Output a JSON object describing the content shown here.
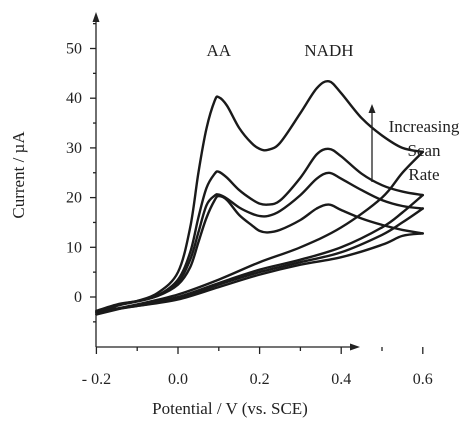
{
  "chart_data": {
    "type": "line",
    "xlabel": "Potential / V (vs. SCE)",
    "ylabel": "Current / µA",
    "x_ticks": [
      -0.2,
      0.0,
      0.2,
      0.4,
      0.6
    ],
    "x_tick_labels": [
      "- 0.2",
      "0.0",
      "0.2",
      "0.4",
      "0.6"
    ],
    "y_ticks": [
      0,
      10,
      20,
      30,
      40,
      50
    ],
    "y_tick_labels": [
      "0",
      "10",
      "20",
      "30",
      "40",
      "50"
    ],
    "xlim": [
      -0.3,
      0.66
    ],
    "ylim": [
      -10,
      56
    ],
    "grid": false,
    "annotations": [
      {
        "text": "AA",
        "x": 0.1,
        "y": 48.5
      },
      {
        "text": "NADH",
        "x": 0.37,
        "y": 48.5
      }
    ],
    "arrow_label": [
      "Increasing",
      "Scan",
      "Rate"
    ],
    "series": [
      {
        "forward": [
          [
            -0.2,
            -2.8
          ],
          [
            -0.15,
            -1.5
          ],
          [
            -0.1,
            -0.8
          ],
          [
            -0.05,
            0.2
          ],
          [
            0.0,
            2.5
          ],
          [
            0.03,
            6
          ],
          [
            0.05,
            11
          ],
          [
            0.07,
            16
          ],
          [
            0.09,
            19.5
          ],
          [
            0.1,
            20.3
          ],
          [
            0.12,
            19.5
          ],
          [
            0.15,
            16.5
          ],
          [
            0.18,
            14.5
          ],
          [
            0.2,
            13.3
          ],
          [
            0.22,
            13
          ],
          [
            0.25,
            13.5
          ],
          [
            0.3,
            15.5
          ],
          [
            0.34,
            17.8
          ],
          [
            0.37,
            18.6
          ],
          [
            0.4,
            17.5
          ],
          [
            0.45,
            15.8
          ],
          [
            0.5,
            14.5
          ],
          [
            0.55,
            13.5
          ],
          [
            0.6,
            12.8
          ]
        ],
        "reverse": [
          [
            0.6,
            12.8
          ],
          [
            0.55,
            12.3
          ],
          [
            0.5,
            10.5
          ],
          [
            0.4,
            8
          ],
          [
            0.3,
            6.5
          ],
          [
            0.2,
            4.5
          ],
          [
            0.1,
            2
          ],
          [
            0.0,
            -0.5
          ],
          [
            -0.1,
            -1.8
          ],
          [
            -0.2,
            -2.8
          ]
        ]
      },
      {
        "forward": [
          [
            -0.2,
            -3.0
          ],
          [
            -0.15,
            -1.6
          ],
          [
            -0.1,
            -0.8
          ],
          [
            -0.05,
            0.3
          ],
          [
            0.0,
            3
          ],
          [
            0.03,
            7.5
          ],
          [
            0.05,
            13
          ],
          [
            0.07,
            18.5
          ],
          [
            0.09,
            20.4
          ],
          [
            0.1,
            20.6
          ],
          [
            0.12,
            19.8
          ],
          [
            0.15,
            18
          ],
          [
            0.18,
            16.8
          ],
          [
            0.2,
            16.3
          ],
          [
            0.22,
            16.3
          ],
          [
            0.25,
            17.3
          ],
          [
            0.3,
            20.5
          ],
          [
            0.34,
            23.8
          ],
          [
            0.37,
            25
          ],
          [
            0.4,
            23.8
          ],
          [
            0.45,
            21.5
          ],
          [
            0.5,
            19.5
          ],
          [
            0.55,
            18.3
          ],
          [
            0.6,
            17.8
          ]
        ],
        "reverse": [
          [
            0.6,
            17.8
          ],
          [
            0.55,
            15
          ],
          [
            0.5,
            12.5
          ],
          [
            0.4,
            9
          ],
          [
            0.3,
            7
          ],
          [
            0.2,
            5
          ],
          [
            0.1,
            2.5
          ],
          [
            0.0,
            -0.3
          ],
          [
            -0.1,
            -1.8
          ],
          [
            -0.2,
            -3.0
          ]
        ]
      },
      {
        "forward": [
          [
            -0.2,
            -3.2
          ],
          [
            -0.15,
            -1.7
          ],
          [
            -0.1,
            -0.9
          ],
          [
            -0.05,
            0.3
          ],
          [
            0.0,
            3.5
          ],
          [
            0.03,
            9
          ],
          [
            0.05,
            16
          ],
          [
            0.07,
            22
          ],
          [
            0.09,
            24.8
          ],
          [
            0.1,
            25.2
          ],
          [
            0.12,
            24
          ],
          [
            0.15,
            21.5
          ],
          [
            0.18,
            19.7
          ],
          [
            0.2,
            18.8
          ],
          [
            0.22,
            18.6
          ],
          [
            0.25,
            19.4
          ],
          [
            0.3,
            24
          ],
          [
            0.34,
            28.7
          ],
          [
            0.37,
            29.8
          ],
          [
            0.4,
            28.3
          ],
          [
            0.45,
            24.8
          ],
          [
            0.5,
            22.5
          ],
          [
            0.55,
            21.2
          ],
          [
            0.6,
            20.5
          ]
        ],
        "reverse": [
          [
            0.6,
            20.5
          ],
          [
            0.55,
            17
          ],
          [
            0.5,
            14
          ],
          [
            0.4,
            10
          ],
          [
            0.3,
            7.5
          ],
          [
            0.2,
            5.5
          ],
          [
            0.1,
            2.8
          ],
          [
            0.0,
            0
          ],
          [
            -0.1,
            -1.5
          ],
          [
            -0.2,
            -3.2
          ]
        ]
      },
      {
        "forward": [
          [
            -0.2,
            -3.5
          ],
          [
            -0.15,
            -1.8
          ],
          [
            -0.1,
            -0.8
          ],
          [
            -0.05,
            0.8
          ],
          [
            0.0,
            5
          ],
          [
            0.03,
            14
          ],
          [
            0.05,
            25
          ],
          [
            0.07,
            34
          ],
          [
            0.09,
            39.5
          ],
          [
            0.1,
            40.2
          ],
          [
            0.12,
            38.5
          ],
          [
            0.15,
            34
          ],
          [
            0.18,
            31
          ],
          [
            0.2,
            29.8
          ],
          [
            0.22,
            29.6
          ],
          [
            0.25,
            31
          ],
          [
            0.3,
            37
          ],
          [
            0.34,
            42
          ],
          [
            0.37,
            43.4
          ],
          [
            0.4,
            41
          ],
          [
            0.45,
            36
          ],
          [
            0.5,
            32.5
          ],
          [
            0.55,
            30
          ],
          [
            0.6,
            29.2
          ]
        ],
        "reverse": [
          [
            0.6,
            29.2
          ],
          [
            0.55,
            25
          ],
          [
            0.5,
            20
          ],
          [
            0.4,
            14
          ],
          [
            0.3,
            10
          ],
          [
            0.2,
            7
          ],
          [
            0.1,
            3.5
          ],
          [
            0.0,
            0.5
          ],
          [
            -0.1,
            -1.5
          ],
          [
            -0.2,
            -3.5
          ]
        ]
      }
    ]
  }
}
